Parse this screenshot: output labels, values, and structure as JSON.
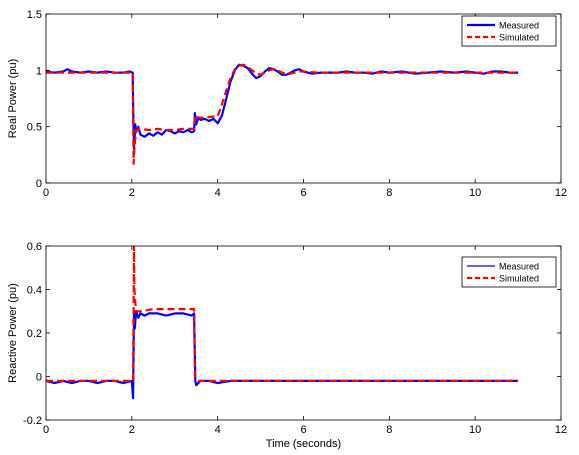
{
  "chart_data": [
    {
      "type": "line",
      "xlabel": "",
      "ylabel": "Real Power (pu)",
      "xlim": [
        0,
        12
      ],
      "ylim": [
        0,
        1.5
      ],
      "xticks": [
        0,
        2,
        4,
        6,
        8,
        10,
        12
      ],
      "yticks": [
        0,
        0.5,
        1,
        1.5
      ],
      "xtick_labels": [
        "0",
        "2",
        "4",
        "6",
        "8",
        "10",
        "12"
      ],
      "ytick_labels": [
        "0",
        "0.5",
        "1",
        "1.5"
      ],
      "legend_position": "top-right",
      "grid": false,
      "series": [
        {
          "name": "Measured",
          "color": "#0000ff",
          "style": "solid",
          "x": [
            0,
            0.2,
            0.4,
            0.5,
            0.6,
            0.8,
            1.0,
            1.2,
            1.4,
            1.6,
            1.8,
            1.95,
            2.02,
            2.03,
            2.05,
            2.08,
            2.1,
            2.15,
            2.2,
            2.3,
            2.4,
            2.5,
            2.6,
            2.7,
            2.8,
            2.9,
            3.0,
            3.1,
            3.2,
            3.3,
            3.4,
            3.45,
            3.47,
            3.5,
            3.55,
            3.6,
            3.7,
            3.8,
            3.9,
            4.0,
            4.1,
            4.2,
            4.3,
            4.4,
            4.5,
            4.6,
            4.7,
            4.8,
            4.9,
            5.0,
            5.1,
            5.2,
            5.3,
            5.4,
            5.5,
            5.6,
            5.7,
            5.8,
            5.9,
            6.0,
            6.2,
            6.4,
            6.6,
            6.8,
            7.0,
            7.2,
            7.4,
            7.6,
            7.8,
            8.0,
            8.3,
            8.6,
            8.9,
            9.2,
            9.5,
            9.8,
            10.0,
            10.2,
            10.4,
            10.6,
            10.8,
            11.0
          ],
          "y": [
            0.99,
            0.98,
            0.99,
            1.01,
            0.99,
            0.98,
            0.99,
            0.98,
            0.99,
            0.98,
            0.98,
            0.99,
            0.98,
            0.7,
            0.3,
            0.52,
            0.45,
            0.5,
            0.43,
            0.41,
            0.44,
            0.42,
            0.45,
            0.43,
            0.47,
            0.46,
            0.44,
            0.46,
            0.45,
            0.47,
            0.45,
            0.46,
            0.62,
            0.52,
            0.58,
            0.56,
            0.57,
            0.55,
            0.57,
            0.53,
            0.6,
            0.75,
            0.9,
            1.0,
            1.05,
            1.04,
            1.02,
            0.97,
            0.93,
            0.95,
            0.99,
            1.02,
            1.01,
            0.99,
            0.96,
            0.96,
            0.98,
            1.0,
            1.01,
            0.99,
            0.97,
            0.98,
            0.98,
            0.98,
            0.99,
            0.98,
            0.98,
            0.97,
            0.99,
            0.98,
            0.99,
            0.97,
            0.98,
            0.99,
            0.98,
            0.99,
            0.98,
            0.97,
            0.99,
            0.99,
            0.98,
            0.98
          ]
        },
        {
          "name": "Simulated",
          "color": "#ff0000",
          "style": "dashed",
          "x": [
            0,
            0.5,
            1.0,
            1.5,
            2.0,
            2.02,
            2.04,
            2.06,
            2.1,
            2.2,
            2.4,
            2.6,
            2.8,
            3.0,
            3.2,
            3.45,
            3.47,
            3.55,
            3.7,
            3.9,
            4.0,
            4.1,
            4.2,
            4.3,
            4.4,
            4.5,
            4.6,
            4.7,
            4.8,
            4.9,
            5.0,
            5.1,
            5.2,
            5.3,
            5.4,
            5.5,
            5.6,
            5.7,
            5.8,
            5.9,
            6.0,
            6.3,
            6.6,
            7.0,
            7.5,
            8.0,
            8.5,
            9.0,
            9.5,
            10.0,
            10.5,
            11.0
          ],
          "y": [
            0.98,
            0.98,
            0.98,
            0.98,
            0.98,
            0.98,
            0.17,
            0.3,
            0.47,
            0.48,
            0.47,
            0.48,
            0.47,
            0.47,
            0.48,
            0.48,
            0.6,
            0.58,
            0.58,
            0.59,
            0.59,
            0.7,
            0.82,
            0.93,
            1.01,
            1.04,
            1.05,
            1.03,
            1.0,
            0.97,
            0.96,
            0.98,
            1.0,
            1.01,
            1.0,
            0.98,
            0.97,
            0.97,
            0.98,
            0.99,
            0.99,
            0.98,
            0.98,
            0.98,
            0.98,
            0.98,
            0.98,
            0.98,
            0.98,
            0.98,
            0.98,
            0.98
          ]
        }
      ]
    },
    {
      "type": "line",
      "xlabel": "Time (seconds)",
      "ylabel": "Reactive Power (pu)",
      "xlim": [
        0,
        12
      ],
      "ylim": [
        -0.2,
        0.6
      ],
      "xticks": [
        0,
        2,
        4,
        6,
        8,
        10,
        12
      ],
      "yticks": [
        -0.2,
        0,
        0.2,
        0.4,
        0.6
      ],
      "xtick_labels": [
        "0",
        "2",
        "4",
        "6",
        "8",
        "10",
        "12"
      ],
      "ytick_labels": [
        "-0.2",
        "0",
        "0.2",
        "0.4",
        "0.6"
      ],
      "legend_position": "top-right",
      "grid": false,
      "series": [
        {
          "name": "Measured",
          "color": "#0000ff",
          "style": "solid",
          "x": [
            0,
            0.2,
            0.4,
            0.6,
            0.8,
            1.0,
            1.2,
            1.4,
            1.6,
            1.8,
            2.0,
            2.03,
            2.05,
            2.07,
            2.1,
            2.15,
            2.2,
            2.3,
            2.4,
            2.6,
            2.8,
            3.0,
            3.2,
            3.4,
            3.45,
            3.48,
            3.5,
            3.6,
            3.8,
            4.0,
            4.3,
            4.6,
            5.0,
            5.5,
            6.0,
            6.5,
            7.0,
            7.5,
            8.0,
            8.5,
            9.0,
            9.5,
            10.0,
            10.5,
            11.0
          ],
          "y": [
            -0.02,
            -0.03,
            -0.02,
            -0.03,
            -0.02,
            -0.02,
            -0.03,
            -0.02,
            -0.02,
            -0.03,
            -0.02,
            -0.1,
            0.3,
            0.22,
            0.3,
            0.27,
            0.29,
            0.28,
            0.29,
            0.29,
            0.28,
            0.29,
            0.29,
            0.28,
            0.29,
            -0.02,
            -0.04,
            -0.02,
            -0.02,
            -0.03,
            -0.02,
            -0.02,
            -0.02,
            -0.02,
            -0.02,
            -0.02,
            -0.02,
            -0.02,
            -0.02,
            -0.02,
            -0.02,
            -0.02,
            -0.02,
            -0.02,
            -0.02
          ]
        },
        {
          "name": "Simulated",
          "color": "#ff0000",
          "style": "dashed",
          "x": [
            0,
            0.5,
            1.0,
            1.5,
            2.0,
            2.03,
            2.05,
            2.06,
            2.08,
            2.1,
            2.2,
            2.5,
            3.0,
            3.45,
            3.47,
            3.55,
            4.0,
            5.0,
            6.0,
            7.0,
            8.0,
            9.0,
            10.0,
            11.0
          ],
          "y": [
            -0.02,
            -0.02,
            -0.02,
            -0.02,
            -0.02,
            -0.02,
            0.6,
            0.4,
            0.34,
            0.3,
            0.3,
            0.31,
            0.31,
            0.31,
            0.0,
            -0.02,
            -0.02,
            -0.02,
            -0.02,
            -0.02,
            -0.02,
            -0.02,
            -0.02,
            -0.02
          ]
        }
      ]
    }
  ]
}
